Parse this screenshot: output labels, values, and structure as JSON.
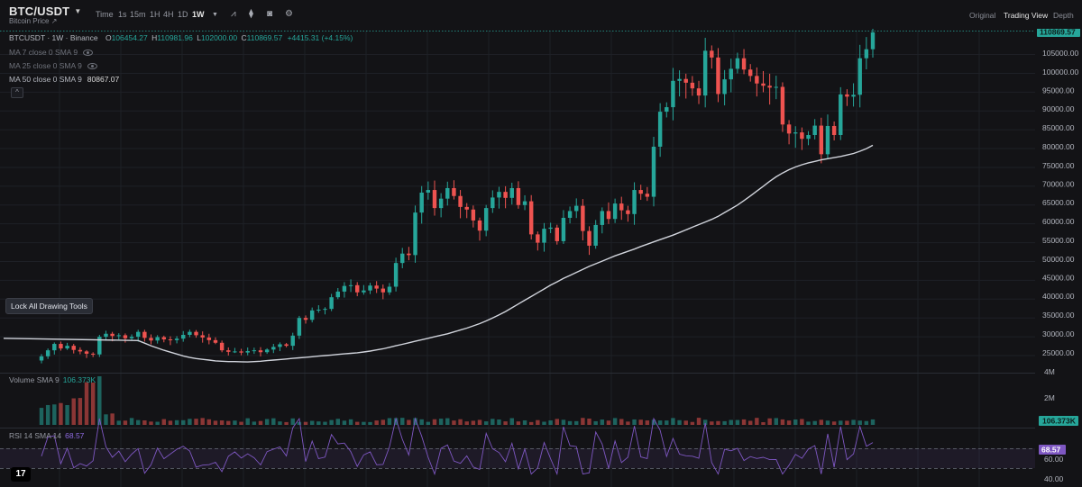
{
  "header": {
    "symbol": "BTC/USDT",
    "subtitle": "Bitcoin Price",
    "timeframes": [
      "Time",
      "1s",
      "15m",
      "1H",
      "4H",
      "1D",
      "1W"
    ],
    "active_timeframe": "1W",
    "views": [
      "Original",
      "Trading View",
      "Depth"
    ],
    "active_view": "Trading View"
  },
  "legend": {
    "title": "BTCUSDT · 1W · Binance",
    "open_label": "O",
    "open": "106454.27",
    "high_label": "H",
    "high": "110981.96",
    "low_label": "L",
    "low": "102000.00",
    "close_label": "C",
    "close": "110869.57",
    "change": "+4415.31 (+4.15%)",
    "ma7": "MA 7 close 0 SMA 9",
    "ma25": "MA 25 close 0 SMA 9",
    "ma50": "MA 50 close 0 SMA 9",
    "ma50_value": "80867.07"
  },
  "lock_tooltip": "Lock All Drawing Tools",
  "volume_pane": {
    "label": "Volume SMA 9",
    "value": "106.373K",
    "axis_labels": [
      "4M",
      "2M"
    ]
  },
  "rsi_pane": {
    "label": "RSI 14 SMA 14",
    "value": "68.57",
    "axis_labels": [
      "60.00",
      "40.00"
    ]
  },
  "price_axis": {
    "labels": [
      "105000.00",
      "100000.00",
      "95000.00",
      "90000.00",
      "85000.00",
      "80000.00",
      "75000.00",
      "70000.00",
      "65000.00",
      "60000.00",
      "55000.00",
      "50000.00",
      "45000.00",
      "40000.00",
      "35000.00",
      "30000.00",
      "25000.00"
    ],
    "current_price": "110869.57"
  },
  "colors": {
    "up": "#26a69a",
    "down": "#ef5350",
    "ma_line": "#d1d4dc",
    "rsi_line": "#7e57c2",
    "background": "#131316"
  },
  "chart_data": {
    "type": "candlestick",
    "interval": "1W",
    "closes": [
      24800,
      26400,
      28100,
      26900,
      27600,
      26500,
      26100,
      25500,
      25300,
      30000,
      30800,
      30200,
      30400,
      29600,
      30000,
      31300,
      29700,
      29000,
      29900,
      29300,
      29100,
      29500,
      30500,
      31300,
      30400,
      29800,
      29100,
      28400,
      26400,
      26000,
      26100,
      25800,
      26200,
      26400,
      25900,
      26600,
      27300,
      28000,
      27600,
      30300,
      35000,
      34500,
      37000,
      37200,
      37400,
      40500,
      42000,
      43500,
      43700,
      41800,
      42300,
      43600,
      42800,
      41800,
      43300,
      49600,
      52100,
      51700,
      63000,
      68300,
      69000,
      64200,
      66700,
      69500,
      67400,
      64500,
      63800,
      60900,
      58200,
      64200,
      67000,
      68500,
      66900,
      69500,
      65000,
      66000,
      57200,
      55000,
      58700,
      59000,
      55400,
      61600,
      63400,
      64800,
      58100,
      54200,
      59700,
      63400,
      61300,
      65400,
      63600,
      62600,
      69000,
      68000,
      67200,
      80500,
      89800,
      91000,
      98000,
      98500,
      97500,
      96000,
      94100,
      106000,
      104200,
      94500,
      98400,
      101200,
      104000,
      101000,
      99300,
      97300,
      96700,
      96200,
      96400,
      86400,
      84000,
      84300,
      82600,
      83600,
      86100,
      78500,
      86000,
      83600,
      94400,
      93800,
      94300,
      104000,
      106400,
      110870
    ],
    "ma50": [
      29000,
      28300,
      27600,
      27000,
      26400,
      25900,
      25400,
      24900,
      24500,
      24200,
      24000,
      23800,
      23600,
      23500,
      23400,
      23400,
      23350,
      23300,
      23400,
      23500,
      23650,
      23800,
      23950,
      24100,
      24250,
      24400,
      24550,
      24700,
      24850,
      25000,
      25150,
      25300,
      25450,
      25600,
      25750,
      25950,
      26200,
      26500,
      26800,
      27200,
      27600,
      28000,
      28400,
      28800,
      29200,
      29600,
      30000,
      30400,
      30800,
      31300,
      31800,
      32300,
      32900,
      33500,
      34200,
      35000,
      35800,
      36700,
      37700,
      38700,
      39700,
      40700,
      41700,
      42700,
      43700,
      44600,
      45500,
      46300,
      47100,
      47900,
      48700,
      49400,
      50100,
      50800,
      51500,
      52100,
      52700,
      53300,
      54000,
      54600,
      55200,
      55800,
      56400,
      57000,
      57700,
      58400,
      59100,
      59800,
      60500,
      61200,
      62000,
      63000,
      64000,
      65000,
      66200,
      67400,
      68700,
      70000,
      71300,
      72500,
      73500,
      74400,
      75100,
      75700,
      76200,
      76600,
      77000,
      77300,
      77600,
      77900,
      78300,
      78700,
      79300,
      80000,
      80867
    ]
  }
}
